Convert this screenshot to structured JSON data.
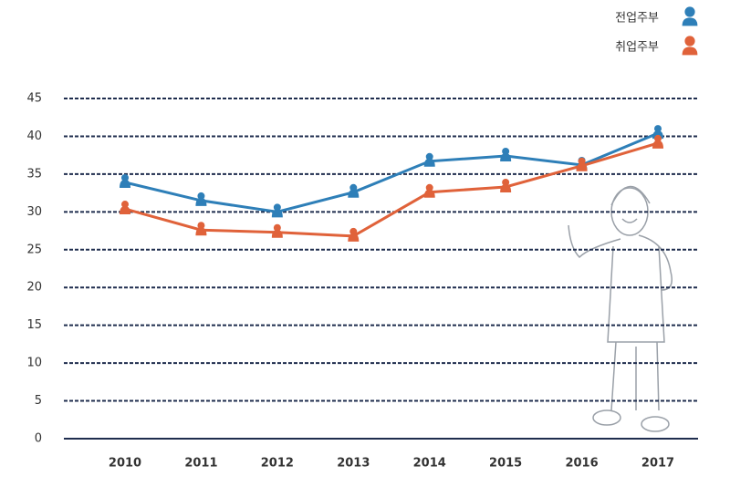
{
  "chart_data": {
    "type": "line",
    "categories": [
      "2010",
      "2011",
      "2012",
      "2013",
      "2014",
      "2015",
      "2016",
      "2017"
    ],
    "series": [
      {
        "name": "전업주부",
        "color": "#2e7fb8",
        "values": [
          33.9,
          31.5,
          30.0,
          32.6,
          36.7,
          37.4,
          36.2,
          40.4
        ]
      },
      {
        "name": "취업주부",
        "color": "#e0623a",
        "values": [
          30.4,
          27.6,
          27.3,
          26.8,
          32.6,
          33.3,
          36.1,
          39.1
        ]
      }
    ],
    "ylim": [
      0,
      45
    ],
    "yticks": [
      0,
      5,
      10,
      15,
      20,
      25,
      30,
      35,
      40,
      45
    ],
    "grid": true,
    "legend": "top-right"
  }
}
